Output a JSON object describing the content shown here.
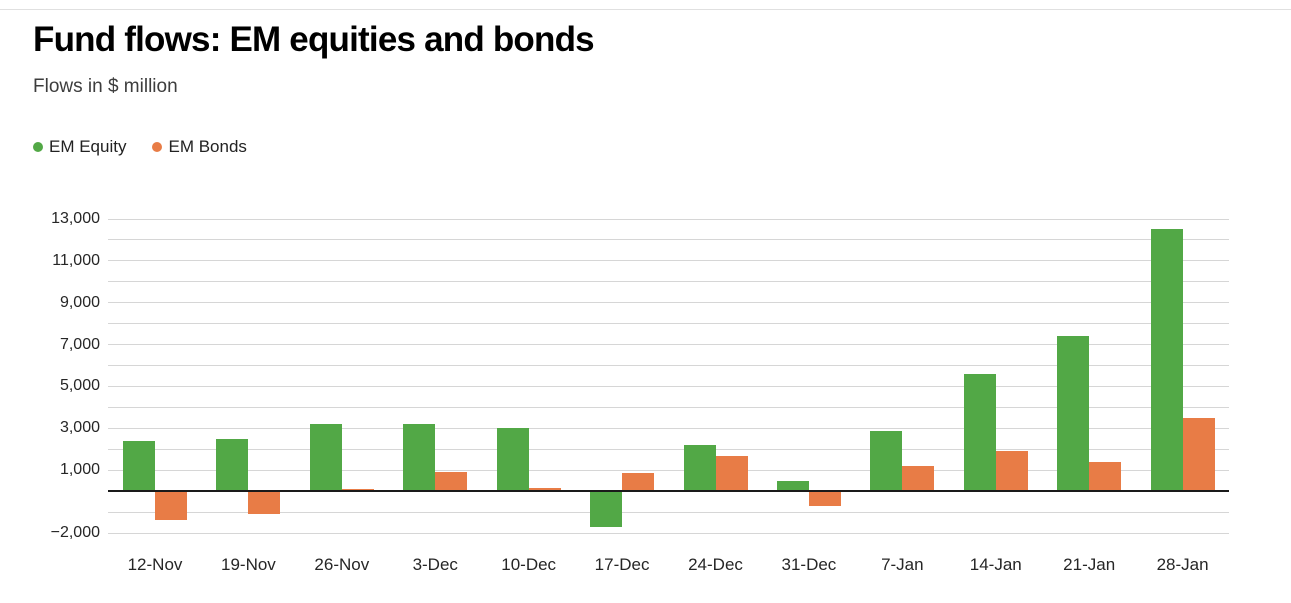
{
  "header": {
    "title": "Fund flows: EM equities and bonds",
    "subtitle": "Flows in $ million"
  },
  "legend": [
    {
      "label": "EM Equity",
      "color": "#52a846"
    },
    {
      "label": "EM Bonds",
      "color": "#e87c46"
    }
  ],
  "chart_data": {
    "type": "bar",
    "title": "Fund flows: EM equities and bonds",
    "subtitle": "Flows in $ million",
    "xlabel": "",
    "ylabel": "Flows in $ million",
    "categories": [
      "12-Nov",
      "19-Nov",
      "26-Nov",
      "3-Dec",
      "10-Dec",
      "17-Dec",
      "24-Dec",
      "31-Dec",
      "7-Jan",
      "14-Jan",
      "21-Jan",
      "28-Jan"
    ],
    "series": [
      {
        "name": "EM Equity",
        "color": "#52a846",
        "values": [
          2400,
          2500,
          3200,
          3200,
          3000,
          -1700,
          2200,
          500,
          2850,
          5600,
          7400,
          12500
        ]
      },
      {
        "name": "EM Bonds",
        "color": "#e87c46",
        "values": [
          -1400,
          -1100,
          100,
          900,
          150,
          850,
          1700,
          -700,
          1200,
          1900,
          1400,
          3500
        ]
      }
    ],
    "ylim": [
      -2000,
      13000
    ],
    "grid": true,
    "grid_step": 1000,
    "legend_position": "top-left",
    "yticks": [
      {
        "value": 13000,
        "label": "13,000"
      },
      {
        "value": 11000,
        "label": "11,000"
      },
      {
        "value": 9000,
        "label": "9,000"
      },
      {
        "value": 7000,
        "label": "7,000"
      },
      {
        "value": 5000,
        "label": "5,000"
      },
      {
        "value": 3000,
        "label": "3,000"
      },
      {
        "value": 1000,
        "label": "1,000"
      },
      {
        "value": -2000,
        "label": "−2,000"
      }
    ]
  },
  "colors": {
    "grid": "#d6d6d6",
    "zero_line": "#1a1a1a",
    "divider": "#e0e0e0"
  }
}
